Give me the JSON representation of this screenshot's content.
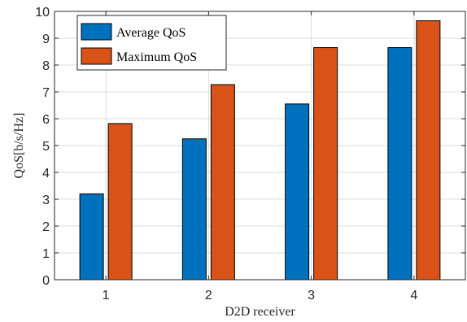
{
  "chart_data": {
    "type": "bar",
    "title": "",
    "xlabel": "D2D receiver",
    "ylabel": "QoS[b/s/Hz]",
    "categories": [
      "1",
      "2",
      "3",
      "4"
    ],
    "series": [
      {
        "name": "Average QoS",
        "values": [
          3.2,
          5.25,
          6.55,
          8.65
        ],
        "color": "#0072BD"
      },
      {
        "name": "Maximum QoS",
        "values": [
          5.82,
          7.27,
          8.65,
          9.65
        ],
        "color": "#D95319"
      }
    ],
    "ylim": [
      0,
      10
    ],
    "yticks": [
      0,
      1,
      2,
      3,
      4,
      5,
      6,
      7,
      8,
      9,
      10
    ],
    "grid": true,
    "legend_position": "top-left"
  }
}
